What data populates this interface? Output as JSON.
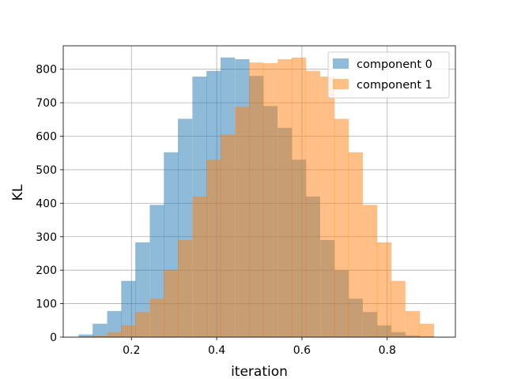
{
  "chart_data": {
    "type": "bar",
    "subtype": "overlapping-histogram",
    "title": "",
    "xlabel": "iteration",
    "ylabel": "KL",
    "xlim": [
      0.04,
      0.96
    ],
    "ylim": [
      0,
      870
    ],
    "xticks": [
      0.2,
      0.4,
      0.6,
      0.8
    ],
    "yticks": [
      0,
      100,
      200,
      300,
      400,
      500,
      600,
      700,
      800
    ],
    "grid": true,
    "legend_position": "top-right",
    "bin_width": 0.0333,
    "bin_starts": [
      0.076,
      0.109,
      0.143,
      0.176,
      0.209,
      0.243,
      0.276,
      0.309,
      0.343,
      0.376,
      0.409,
      0.443,
      0.476,
      0.509,
      0.543,
      0.576,
      0.609,
      0.643,
      0.676,
      0.709,
      0.743,
      0.776,
      0.809,
      0.843,
      0.876
    ],
    "series": [
      {
        "name": "component 0",
        "color": "#1f77b4",
        "opacity": 0.5,
        "values": [
          8,
          40,
          78,
          168,
          283,
          395,
          552,
          652,
          778,
          795,
          835,
          830,
          780,
          690,
          625,
          530,
          420,
          290,
          200,
          115,
          75,
          35,
          15,
          5,
          2
        ]
      },
      {
        "name": "component 1",
        "color": "#ff7f0e",
        "opacity": 0.5,
        "values": [
          2,
          5,
          15,
          35,
          75,
          115,
          200,
          290,
          420,
          530,
          605,
          688,
          820,
          818,
          830,
          835,
          795,
          778,
          652,
          552,
          395,
          283,
          168,
          78,
          40
        ]
      }
    ]
  }
}
